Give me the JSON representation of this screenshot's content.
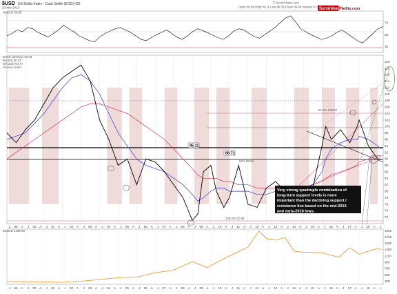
{
  "header": {
    "symbol": "$USD",
    "title": "US Dollar Index - Cash Settle (EOD)  ICE",
    "date": "20-Mar-2018",
    "ohlc": "Open 89.89   High 90.11   Low 89.35   Close 89.69   Volume 0   Chg +0.37 (+0.40%)",
    "stockcharts": "© StockCharts.com",
    "logo_a": "Sunshine",
    "logo_b": "Profits.com"
  },
  "panels": {
    "rsi_label": "RSI(14) 63.95",
    "price_label": "$USD (Weekly) 89.93",
    "ma50_label": "MA(50) 90.23",
    "ma200_label": "MA(200) 94.77",
    "volume_label": "Volume undef",
    "gold_label": "$GOLD 1289.40"
  },
  "annotations": {
    "level_a": "95.11",
    "level_b": "88.71",
    "fib_label": "61.8% 103.87",
    "fib_label2": "50% 88.52",
    "fib_label3": "100.0% 72.88",
    "note": "Very strong quadruple combination of long-term support levels is more important than the declining support / resistance line based on the mid-2015 and early-2016 lows."
  },
  "colors": {
    "price": "#000000",
    "up_candle": "#000000",
    "down_candle": "#cc0000",
    "ma50": "#3333cc",
    "ma200": "#cc3366",
    "gold": "#f08a24",
    "highlight": "#e8c8c8",
    "rsi": "#000000",
    "rsi_over": "#2e7d32"
  },
  "chart_data": [
    {
      "type": "line",
      "name": "RSI",
      "y_ticks": [
        "30",
        "50",
        "70"
      ],
      "ylim": [
        20,
        90
      ],
      "values": [
        48,
        52,
        58,
        55,
        62,
        60,
        54,
        50,
        46,
        52,
        58,
        66,
        60,
        55,
        48,
        44,
        40,
        38,
        46,
        52,
        56,
        60,
        62,
        58,
        54,
        48,
        42,
        40,
        45,
        50,
        54,
        58,
        52,
        46,
        42,
        48,
        55,
        60,
        57,
        53,
        49,
        45,
        42,
        48,
        56,
        60,
        58,
        52,
        47,
        44,
        50,
        56,
        62,
        70,
        78,
        82,
        72,
        60,
        55,
        50,
        46,
        42,
        44,
        48,
        54,
        58,
        52,
        46,
        40,
        36,
        44,
        52,
        60,
        64
      ]
    },
    {
      "type": "line",
      "name": "$USD weekly",
      "ylim": [
        70,
        122
      ],
      "y_ticks": [
        "72",
        "74",
        "76",
        "78",
        "80",
        "82",
        "84",
        "86",
        "88",
        "90",
        "92",
        "94",
        "96",
        "98",
        "100",
        "102",
        "104",
        "106",
        "108",
        "110",
        "112",
        "114",
        "116",
        "118",
        "120"
      ],
      "x_ticks": [
        "J",
        "99",
        "A",
        "J",
        "00",
        "A",
        "J",
        "01",
        "A",
        "J",
        "02",
        "A",
        "J",
        "03",
        "A",
        "J",
        "04",
        "A",
        "J",
        "05",
        "A",
        "J",
        "06",
        "A",
        "J",
        "07",
        "A",
        "J",
        "08",
        "A",
        "J",
        "09",
        "A",
        "J",
        "10",
        "A",
        "J",
        "11",
        "A",
        "J",
        "12",
        "A",
        "J",
        "13",
        "A",
        "J",
        "14",
        "A",
        "J",
        "15",
        "A",
        "J",
        "16",
        "A",
        "J",
        "17",
        "A",
        "J",
        "18",
        "A",
        "J"
      ],
      "x": [
        1998.0,
        1998.5,
        1999.0,
        1999.5,
        2000.0,
        2000.5,
        2001.0,
        2001.5,
        2002.0,
        2002.5,
        2003.0,
        2003.5,
        2004.0,
        2004.5,
        2005.0,
        2005.5,
        2006.0,
        2006.5,
        2007.0,
        2007.5,
        2008.0,
        2008.3,
        2008.6,
        2009.0,
        2009.3,
        2009.7,
        2010.0,
        2010.5,
        2011.0,
        2011.5,
        2012.0,
        2012.5,
        2013.0,
        2013.5,
        2014.0,
        2014.5,
        2015.0,
        2015.2,
        2015.5,
        2016.0,
        2016.5,
        2016.9,
        2017.0,
        2017.5,
        2018.0,
        2018.2
      ],
      "values": [
        98,
        95,
        99,
        102,
        107,
        112,
        115,
        117,
        119,
        114,
        102,
        96,
        88,
        90,
        82,
        90,
        89,
        86,
        82,
        78,
        71,
        73,
        86,
        88,
        80,
        75,
        78,
        88,
        76,
        75,
        81,
        83,
        80,
        81,
        80,
        81,
        94,
        100,
        96,
        99,
        95,
        100,
        102,
        94,
        90,
        89.9
      ],
      "ma50": [
        96,
        97,
        98,
        101,
        104,
        108,
        112,
        115,
        116,
        114,
        110,
        104,
        98,
        94,
        90,
        88,
        87,
        86,
        84,
        82,
        79,
        77,
        78,
        80,
        81,
        81,
        80,
        80,
        80,
        79,
        79,
        80,
        80,
        80,
        81,
        82,
        86,
        90,
        93,
        95,
        96,
        96,
        97,
        96,
        94,
        93
      ],
      "ma200": [
        90,
        92,
        94,
        96,
        98,
        100,
        102,
        104,
        106,
        107,
        107,
        106,
        105,
        104,
        102,
        100,
        98,
        96,
        93,
        90,
        87,
        85,
        84,
        84,
        84,
        83,
        83,
        82,
        82,
        81,
        81,
        81,
        81,
        81,
        81,
        82,
        83,
        84,
        85,
        86,
        87,
        88,
        89,
        90,
        91,
        91
      ]
    },
    {
      "type": "area",
      "name": "$GOLD",
      "ylim": [
        200,
        1950
      ],
      "y_ticks": [
        "300",
        "400",
        "500",
        "600",
        "700",
        "800",
        "900",
        "1000",
        "1100",
        "1200",
        "1300",
        "1400",
        "1500",
        "1600",
        "1700",
        "1800",
        "1900"
      ],
      "x": [
        1998.0,
        1999.0,
        2000.0,
        2001.0,
        2002.0,
        2003.0,
        2004.0,
        2005.0,
        2006.0,
        2007.0,
        2008.0,
        2008.8,
        2009.5,
        2010.0,
        2010.5,
        2011.0,
        2011.6,
        2012.0,
        2012.5,
        2013.0,
        2013.5,
        2014.0,
        2015.0,
        2015.9,
        2016.5,
        2017.0,
        2017.5,
        2018.0,
        2018.2
      ],
      "values": [
        290,
        280,
        280,
        265,
        300,
        350,
        410,
        430,
        570,
        650,
        920,
        730,
        950,
        1100,
        1240,
        1380,
        1890,
        1650,
        1600,
        1680,
        1250,
        1220,
        1200,
        1060,
        1360,
        1150,
        1250,
        1340,
        1289
      ]
    }
  ]
}
